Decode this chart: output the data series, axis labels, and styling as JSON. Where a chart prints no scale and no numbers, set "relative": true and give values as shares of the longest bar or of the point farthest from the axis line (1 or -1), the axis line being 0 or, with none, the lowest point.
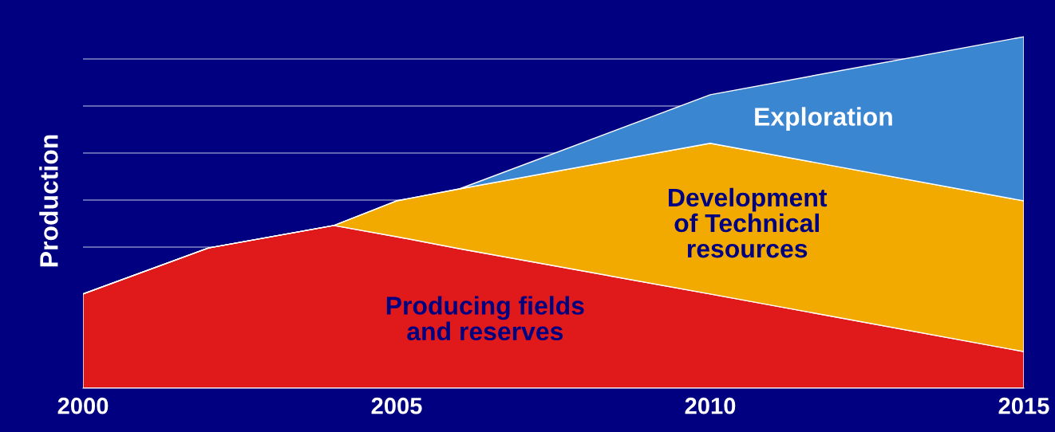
{
  "chart_data": {
    "type": "area",
    "stacked": true,
    "relative": true,
    "ylabel": "Production",
    "x": [
      2000,
      2002,
      2004,
      2005,
      2006,
      2010,
      2015
    ],
    "xlim": [
      2000,
      2015
    ],
    "xticks": [
      2000,
      2005,
      2010,
      2015
    ],
    "grid": "y",
    "legend": false,
    "series": [
      {
        "name": "Producing fields\nand reserves",
        "color": "#e0191b",
        "values": [
          0.268,
          0.399,
          0.463,
          0.431,
          0.397,
          0.268,
          0.104
        ]
      },
      {
        "name": "Development\nof Technical\nresources",
        "color": "#f2aa00",
        "values": [
          0,
          0,
          0,
          0.102,
          0.17,
          0.429,
          0.429
        ]
      },
      {
        "name": "Exploration",
        "color": "#3a86d0",
        "values": [
          0,
          0,
          0,
          0,
          0,
          0.138,
          0.467
        ]
      }
    ]
  }
}
